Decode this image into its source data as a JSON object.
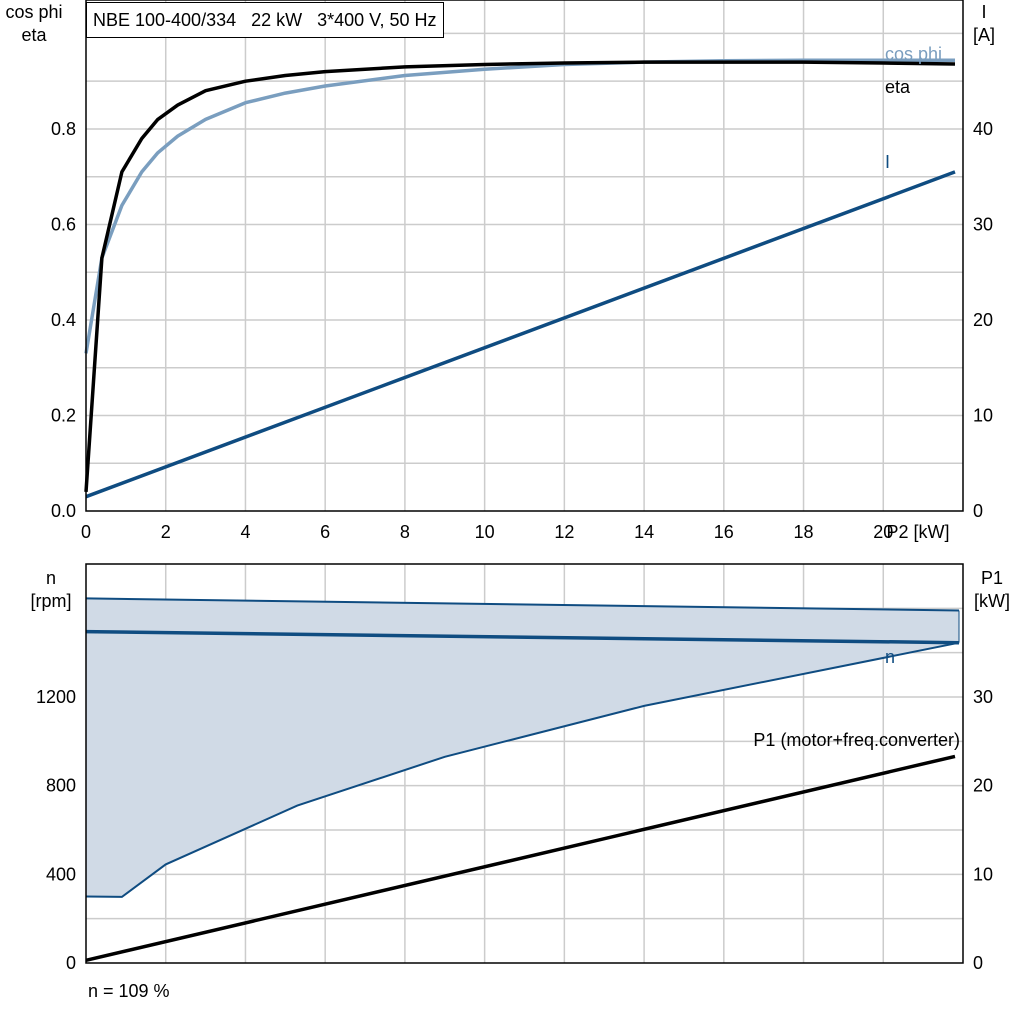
{
  "header": {
    "title": "NBE 100-400/334   22 kW   3*400 V, 50 Hz"
  },
  "footer": {
    "note": "n = 109 %"
  },
  "colors": {
    "eta": "#000000",
    "cos_phi": "#7a9ebf",
    "current": "#0f4c81",
    "speed": "#0f4c81",
    "speed_band_fill": "#d0dae6",
    "p1": "#000000",
    "grid": "#cccccc"
  },
  "chart_data": [
    {
      "type": "line",
      "xlabel": "P2 [kW]",
      "ylabel_left": [
        "cos phi",
        "eta"
      ],
      "ylabel_right": [
        "I",
        "[A]"
      ],
      "xlim": [
        0,
        22
      ],
      "ylim_left": [
        0,
        1.07
      ],
      "ylim_right": [
        0,
        53.5
      ],
      "x_ticks": [
        "0",
        "2",
        "4",
        "6",
        "8",
        "10",
        "12",
        "14",
        "16",
        "18",
        "20"
      ],
      "y_ticks_left": [
        "0.0",
        "0.2",
        "0.4",
        "0.6",
        "0.8"
      ],
      "y_ticks_right": [
        "0",
        "10",
        "20",
        "30",
        "40"
      ],
      "grid": true,
      "series": [
        {
          "name": "cos phi",
          "axis": "left",
          "x": [
            0,
            0.4,
            0.9,
            1.4,
            1.8,
            2.3,
            3,
            4,
            5,
            6,
            8,
            10,
            12,
            14,
            16,
            18,
            20,
            21.8
          ],
          "y": [
            0.33,
            0.53,
            0.64,
            0.71,
            0.75,
            0.785,
            0.82,
            0.855,
            0.875,
            0.89,
            0.912,
            0.925,
            0.935,
            0.94,
            0.943,
            0.944,
            0.944,
            0.944
          ]
        },
        {
          "name": "eta",
          "axis": "left",
          "x": [
            0,
            0.4,
            0.9,
            1.4,
            1.8,
            2.3,
            3,
            4,
            5,
            6,
            8,
            10,
            12,
            14,
            16,
            18,
            20,
            21.8
          ],
          "y": [
            0.04,
            0.53,
            0.71,
            0.78,
            0.82,
            0.85,
            0.88,
            0.9,
            0.912,
            0.92,
            0.93,
            0.935,
            0.938,
            0.94,
            0.94,
            0.94,
            0.938,
            0.936
          ]
        },
        {
          "name": "I",
          "axis": "right",
          "x": [
            0,
            21.8
          ],
          "y": [
            1.5,
            35.5
          ]
        }
      ]
    },
    {
      "type": "line",
      "xlim": [
        0,
        22
      ],
      "ylabel_left": [
        "n",
        "[rpm]"
      ],
      "ylabel_right": [
        "P1",
        "[kW]"
      ],
      "ylim_left": [
        0,
        1800
      ],
      "ylim_right": [
        0,
        45
      ],
      "y_ticks_left": [
        "0",
        "400",
        "800",
        "1200"
      ],
      "y_ticks_right": [
        "0",
        "10",
        "20",
        "30"
      ],
      "grid": true,
      "band": {
        "name": "speed range",
        "upper": {
          "x": [
            0,
            21.9
          ],
          "y": [
            1645,
            1590
          ]
        },
        "lower": {
          "x": [
            0,
            0.9,
            2,
            5.3,
            9,
            14,
            21.9
          ],
          "y": [
            300,
            298,
            445,
            710,
            930,
            1160,
            1445
          ]
        }
      },
      "series": [
        {
          "name": "n",
          "axis": "left",
          "x": [
            0,
            21.9
          ],
          "y": [
            1495,
            1445
          ]
        },
        {
          "name": "P1 (motor+freq.converter)",
          "axis": "right",
          "x": [
            0,
            21.8
          ],
          "y": [
            0.3,
            23.3
          ]
        }
      ]
    }
  ]
}
